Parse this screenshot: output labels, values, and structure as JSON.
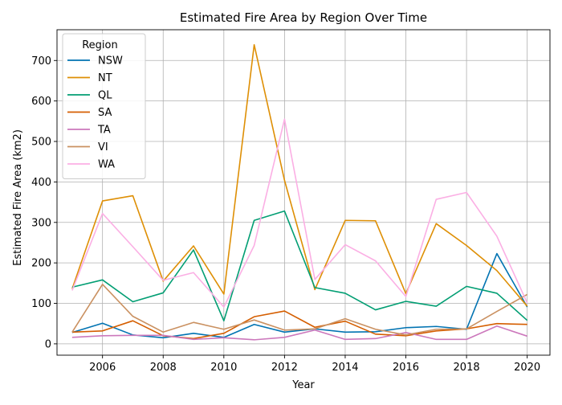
{
  "chart_data": {
    "type": "line",
    "title": "Estimated Fire Area by Region Over Time",
    "xlabel": "Year",
    "ylabel": "Estimated Fire Area (km2)",
    "xlim": [
      2004.5,
      2020.75
    ],
    "ylim": [
      -28,
      776
    ],
    "x_ticks": [
      2006,
      2008,
      2010,
      2012,
      2014,
      2016,
      2018,
      2020
    ],
    "y_ticks": [
      0,
      100,
      200,
      300,
      400,
      500,
      600,
      700
    ],
    "grid": true,
    "legend": {
      "title": "Region",
      "placement": "top-left"
    },
    "x": [
      2005,
      2006,
      2007,
      2008,
      2009,
      2010,
      2011,
      2012,
      2013,
      2014,
      2015,
      2016,
      2017,
      2018,
      2019,
      2020
    ],
    "series": [
      {
        "name": "NSW",
        "color": "#0173b2",
        "values": [
          28,
          51,
          22,
          15,
          26,
          16,
          48,
          29,
          37,
          29,
          30,
          40,
          43,
          36,
          223,
          91
        ]
      },
      {
        "name": "NT",
        "color": "#de8f05",
        "values": [
          136,
          353,
          366,
          155,
          242,
          123,
          739,
          404,
          134,
          305,
          304,
          124,
          297,
          243,
          181,
          93
        ]
      },
      {
        "name": "QL",
        "color": "#029e73",
        "values": [
          140,
          158,
          104,
          126,
          232,
          57,
          305,
          328,
          139,
          125,
          84,
          105,
          93,
          142,
          125,
          58
        ]
      },
      {
        "name": "SA",
        "color": "#d55e00",
        "values": [
          29,
          32,
          57,
          20,
          13,
          26,
          67,
          81,
          41,
          56,
          24,
          20,
          32,
          37,
          50,
          48
        ]
      },
      {
        "name": "TA",
        "color": "#cc78bc",
        "values": [
          16,
          20,
          21,
          21,
          11,
          15,
          10,
          16,
          34,
          11,
          13,
          28,
          11,
          11,
          44,
          19
        ]
      },
      {
        "name": "VI",
        "color": "#ca9161",
        "values": [
          29,
          147,
          68,
          29,
          53,
          36,
          59,
          34,
          37,
          62,
          36,
          22,
          36,
          37,
          80,
          122
        ]
      },
      {
        "name": "WA",
        "color": "#fbafe4",
        "values": [
          132,
          322,
          240,
          157,
          176,
          91,
          243,
          555,
          159,
          245,
          205,
          117,
          357,
          374,
          266,
          101
        ]
      }
    ]
  }
}
